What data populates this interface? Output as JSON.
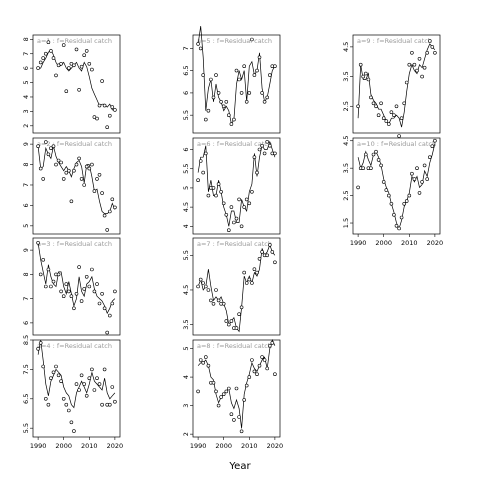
{
  "figure": {
    "xlabel": "Year"
  },
  "chart_data": [
    {
      "type": "scatter",
      "title": "a=1 : f=Residual catch",
      "xlim": [
        1988,
        2022
      ],
      "ylim": [
        1.5,
        8.3
      ],
      "yticks": [
        2,
        3,
        4,
        5,
        6,
        7,
        8
      ],
      "xlabel": "Year",
      "x": [
        1990,
        1991,
        1992,
        1993,
        1994,
        1995,
        1996,
        1997,
        1998,
        1999,
        2000,
        2001,
        2002,
        2003,
        2004,
        2005,
        2006,
        2007,
        2008,
        2009,
        2010,
        2011,
        2012,
        2013,
        2014,
        2015,
        2016,
        2017,
        2018,
        2019,
        2020
      ],
      "points": [
        6.0,
        6.4,
        6.7,
        7.0,
        7.8,
        7.2,
        6.7,
        5.5,
        6.2,
        6.3,
        7.6,
        4.4,
        6.0,
        6.3,
        6.2,
        7.3,
        4.5,
        6.1,
        6.9,
        7.2,
        6.3,
        5.9,
        2.6,
        2.5,
        3.4,
        5.1,
        3.4,
        1.9,
        2.7,
        3.3,
        3.1
      ],
      "line": [
        6.0,
        6.0,
        6.4,
        6.7,
        7.1,
        7.3,
        6.9,
        6.4,
        6.1,
        6.2,
        6.4,
        6.0,
        5.8,
        6.0,
        6.2,
        6.4,
        6.0,
        5.8,
        6.4,
        6.1,
        5.4,
        4.6,
        4.2,
        3.8,
        3.4,
        3.5,
        3.5,
        3.3,
        3.5,
        3.1,
        3.1
      ]
    },
    {
      "type": "scatter",
      "title": "a=2 : f=Residual catch",
      "xlim": [
        1988,
        2022
      ],
      "ylim": [
        4.6,
        9.3
      ],
      "yticks": [
        5,
        6,
        7,
        8,
        9
      ],
      "xlabel": "Year",
      "x": [
        1990,
        1991,
        1992,
        1993,
        1994,
        1995,
        1996,
        1997,
        1998,
        1999,
        2000,
        2001,
        2002,
        2003,
        2004,
        2005,
        2006,
        2007,
        2008,
        2009,
        2010,
        2011,
        2012,
        2013,
        2014,
        2015,
        2016,
        2017,
        2018,
        2019,
        2020
      ],
      "points": [
        8.9,
        7.8,
        7.3,
        9.1,
        8.5,
        8.8,
        8.9,
        8.0,
        8.2,
        8.1,
        7.3,
        7.6,
        7.7,
        6.2,
        7.7,
        8.0,
        8.3,
        7.3,
        7.0,
        7.9,
        7.8,
        8.0,
        6.7,
        7.3,
        7.5,
        6.6,
        5.5,
        4.8,
        5.7,
        6.3,
        5.9
      ],
      "line": [
        8.9,
        7.8,
        7.9,
        8.8,
        8.5,
        8.3,
        8.9,
        8.4,
        8.1,
        7.9,
        7.7,
        7.9,
        7.7,
        7.4,
        7.8,
        8.1,
        8.2,
        7.9,
        7.1,
        8.0,
        8.0,
        7.4,
        6.7,
        6.8,
        6.2,
        5.7,
        5.6,
        5.6,
        5.7,
        6.1,
        5.8
      ]
    },
    {
      "type": "scatter",
      "title": "a=3 : f=Residual catch",
      "xlim": [
        1988,
        2022
      ],
      "ylim": [
        5.5,
        9.5
      ],
      "yticks": [
        6,
        7,
        8,
        9
      ],
      "xlabel": "Year",
      "x": [
        1990,
        1991,
        1992,
        1993,
        1994,
        1995,
        1996,
        1997,
        1998,
        1999,
        2000,
        2001,
        2002,
        2003,
        2004,
        2005,
        2006,
        2007,
        2008,
        2009,
        2010,
        2011,
        2012,
        2013,
        2014,
        2015,
        2016,
        2017,
        2018,
        2019,
        2020
      ],
      "points": [
        9.3,
        8.0,
        8.6,
        7.5,
        8.2,
        7.5,
        7.7,
        8.0,
        8.0,
        7.3,
        7.1,
        7.6,
        7.3,
        7.1,
        6.6,
        7.2,
        8.3,
        6.9,
        7.4,
        7.9,
        7.5,
        8.2,
        7.3,
        7.6,
        6.8,
        7.2,
        6.6,
        5.6,
        6.3,
        6.8,
        7.3
      ],
      "line": [
        9.3,
        8.6,
        8.1,
        7.6,
        8.4,
        7.9,
        7.6,
        7.5,
        8.1,
        8.1,
        7.5,
        7.2,
        7.7,
        7.2,
        6.7,
        7.0,
        7.9,
        7.3,
        7.1,
        7.6,
        7.7,
        7.9,
        7.4,
        7.1,
        7.0,
        6.9,
        6.7,
        6.4,
        6.6,
        6.9,
        7.0
      ]
    },
    {
      "type": "scatter",
      "title": "a=4 : f=Residual catch",
      "xlim": [
        1988,
        2022
      ],
      "ylim": [
        5.2,
        8.5
      ],
      "yticks": [
        5.5,
        6.5,
        7.5,
        8.5
      ],
      "xlabel": "Year",
      "x": [
        1990,
        1991,
        1992,
        1993,
        1994,
        1995,
        1996,
        1997,
        1998,
        1999,
        2000,
        2001,
        2002,
        2003,
        2004,
        2005,
        2006,
        2007,
        2008,
        2009,
        2010,
        2011,
        2012,
        2013,
        2014,
        2015,
        2016,
        2017,
        2018,
        2019,
        2020
      ],
      "points": [
        8.2,
        8.4,
        7.6,
        6.5,
        6.3,
        7.2,
        7.4,
        7.6,
        7.3,
        7.1,
        6.5,
        6.3,
        6.1,
        5.7,
        5.4,
        7.0,
        6.8,
        7.3,
        7.0,
        6.6,
        7.2,
        7.5,
        6.8,
        7.2,
        7.0,
        6.3,
        7.5,
        6.3,
        6.3,
        6.9,
        6.4
      ],
      "line": [
        8.0,
        8.5,
        7.8,
        7.0,
        6.6,
        7.1,
        7.3,
        7.5,
        7.4,
        7.3,
        6.9,
        6.7,
        6.6,
        6.3,
        6.2,
        6.7,
        6.9,
        7.1,
        6.9,
        6.7,
        7.0,
        7.4,
        7.1,
        7.0,
        6.9,
        6.8,
        7.2,
        6.7,
        6.5,
        6.6,
        6.7
      ]
    },
    {
      "type": "scatter",
      "title": "a=5 : f=Residual catch",
      "xlim": [
        1988,
        2022
      ],
      "ylim": [
        5.1,
        7.3
      ],
      "yticks": [
        5.5,
        6.0,
        6.5,
        7.0
      ],
      "xlabel": "Year",
      "x": [
        1990,
        1991,
        1992,
        1993,
        1994,
        1995,
        1996,
        1997,
        1998,
        1999,
        2000,
        2001,
        2002,
        2003,
        2004,
        2005,
        2006,
        2007,
        2008,
        2009,
        2010,
        2011,
        2012,
        2013,
        2014,
        2015,
        2016,
        2017,
        2018,
        2019,
        2020
      ],
      "points": [
        7.1,
        7.0,
        6.4,
        5.4,
        5.6,
        6.3,
        5.9,
        6.4,
        6.0,
        5.8,
        5.7,
        5.8,
        5.5,
        5.3,
        5.4,
        6.5,
        6.3,
        6.0,
        6.6,
        5.8,
        6.0,
        7.2,
        6.4,
        6.5,
        6.8,
        6.0,
        5.8,
        5.9,
        6.4,
        6.6,
        6.6
      ],
      "line": [
        7.1,
        7.5,
        6.8,
        5.6,
        6.1,
        6.3,
        5.8,
        6.2,
        5.9,
        5.8,
        5.6,
        5.7,
        5.6,
        5.3,
        5.4,
        6.2,
        6.5,
        6.3,
        6.5,
        5.8,
        6.6,
        6.7,
        6.4,
        6.5,
        6.9,
        6.1,
        5.8,
        5.9,
        6.2,
        6.5,
        6.6
      ]
    },
    {
      "type": "scatter",
      "title": "a=6 : f=Residual catch",
      "xlim": [
        1988,
        2022
      ],
      "ylim": [
        3.8,
        6.3
      ],
      "yticks": [
        4.0,
        4.5,
        5.0,
        5.5,
        6.0
      ],
      "xlabel": "Year",
      "x": [
        1990,
        1991,
        1992,
        1993,
        1994,
        1995,
        1996,
        1997,
        1998,
        1999,
        2000,
        2001,
        2002,
        2003,
        2004,
        2005,
        2006,
        2007,
        2008,
        2009,
        2010,
        2011,
        2012,
        2013,
        2014,
        2015,
        2016,
        2017,
        2018,
        2019,
        2020
      ],
      "points": [
        5.2,
        5.7,
        5.4,
        5.9,
        4.8,
        5.0,
        5.0,
        4.8,
        5.1,
        4.9,
        4.6,
        4.3,
        3.9,
        4.5,
        4.1,
        4.2,
        4.7,
        4.0,
        4.5,
        4.7,
        4.6,
        4.9,
        5.8,
        5.4,
        6.0,
        6.1,
        5.9,
        6.2,
        6.1,
        5.9,
        5.9
      ],
      "line": [
        5.4,
        5.8,
        5.8,
        6.1,
        4.9,
        5.2,
        4.8,
        4.8,
        5.2,
        4.9,
        4.5,
        4.3,
        4.0,
        4.4,
        4.4,
        4.1,
        4.1,
        4.7,
        4.5,
        4.4,
        4.9,
        5.1,
        5.9,
        5.3,
        5.8,
        6.1,
        6.0,
        6.0,
        6.2,
        6.0,
        5.8
      ]
    },
    {
      "type": "scatter",
      "title": "a=7 : f=Residual catch",
      "xlim": [
        1988,
        2022
      ],
      "ylim": [
        3.2,
        6.0
      ],
      "yticks": [
        3.5,
        4.5,
        5.5
      ],
      "xlabel": "Year",
      "x": [
        1990,
        1991,
        1992,
        1993,
        1994,
        1995,
        1996,
        1997,
        1998,
        1999,
        2000,
        2001,
        2002,
        2003,
        2004,
        2005,
        2006,
        2007,
        2008,
        2009,
        2010,
        2011,
        2012,
        2013,
        2014,
        2015,
        2016,
        2017,
        2018,
        2019,
        2020
      ],
      "points": [
        4.6,
        4.8,
        4.7,
        4.6,
        4.5,
        4.2,
        4.1,
        4.5,
        4.2,
        4.1,
        4.1,
        3.6,
        3.5,
        3.6,
        3.4,
        3.4,
        3.8,
        4.0,
        5.0,
        4.7,
        4.8,
        4.7,
        5.1,
        5.0,
        5.4,
        5.6,
        5.5,
        5.5,
        5.8,
        5.6,
        5.3
      ],
      "line": [
        4.6,
        4.8,
        4.5,
        4.6,
        5.1,
        4.6,
        4.2,
        4.3,
        4.2,
        4.3,
        4.1,
        3.9,
        3.5,
        3.6,
        3.7,
        3.4,
        3.3,
        4.0,
        4.9,
        4.7,
        4.9,
        4.7,
        5.0,
        4.9,
        5.1,
        5.7,
        5.5,
        5.6,
        5.8,
        5.6,
        5.5
      ]
    },
    {
      "type": "scatter",
      "title": "a=8 : f=Residual catch",
      "xlim": [
        1988,
        2022
      ],
      "ylim": [
        1.9,
        5.3
      ],
      "yticks": [
        2.0,
        3.0,
        4.0,
        5.0
      ],
      "xlabel": "Year",
      "x": [
        1990,
        1991,
        1992,
        1993,
        1994,
        1995,
        1996,
        1997,
        1998,
        1999,
        2000,
        2001,
        2002,
        2003,
        2004,
        2005,
        2006,
        2007,
        2008,
        2009,
        2010,
        2011,
        2012,
        2013,
        2014,
        2015,
        2016,
        2017,
        2018,
        2019,
        2020
      ],
      "points": [
        3.5,
        4.6,
        4.5,
        4.7,
        4.4,
        3.8,
        3.8,
        3.5,
        3.0,
        3.3,
        3.4,
        3.5,
        3.6,
        2.7,
        2.5,
        3.6,
        2.6,
        2.1,
        3.2,
        3.7,
        4.0,
        4.6,
        4.2,
        4.1,
        4.4,
        4.7,
        4.6,
        4.3,
        5.1,
        5.2,
        4.1
      ],
      "line": [
        4.4,
        4.5,
        4.5,
        4.6,
        4.4,
        4.0,
        3.9,
        3.4,
        3.1,
        3.3,
        3.4,
        3.5,
        3.6,
        3.1,
        2.9,
        3.2,
        2.9,
        2.2,
        3.4,
        3.8,
        4.1,
        4.5,
        4.3,
        4.2,
        4.4,
        4.6,
        4.7,
        4.3,
        5.0,
        5.3,
        5.1
      ]
    },
    {
      "type": "scatter",
      "title": "a=9 : f=Residual catch",
      "xlim": [
        1988,
        2022
      ],
      "ylim": [
        1.6,
        4.9
      ],
      "yticks": [
        1.5,
        2.5,
        3.5,
        4.5
      ],
      "xlabel": "Year",
      "x": [
        1990,
        1991,
        1992,
        1993,
        1994,
        1995,
        1996,
        1997,
        1998,
        1999,
        2000,
        2001,
        2002,
        2003,
        2004,
        2005,
        2006,
        2007,
        2008,
        2009,
        2010,
        2011,
        2012,
        2013,
        2014,
        2015,
        2016,
        2017,
        2018,
        2019,
        2020
      ],
      "points": [
        2.5,
        3.9,
        3.5,
        3.6,
        3.4,
        2.8,
        2.6,
        2.5,
        2.2,
        2.6,
        2.1,
        2.0,
        1.9,
        2.3,
        2.2,
        2.5,
        1.5,
        2.1,
        2.6,
        3.3,
        3.9,
        4.3,
        3.9,
        3.7,
        4.1,
        3.5,
        3.8,
        4.3,
        4.7,
        4.5,
        4.3
      ],
      "line": [
        2.1,
        3.9,
        3.4,
        3.4,
        3.6,
        2.9,
        2.7,
        2.6,
        2.4,
        2.4,
        2.2,
        2.0,
        1.9,
        2.1,
        2.1,
        2.2,
        2.1,
        1.8,
        2.3,
        3.0,
        3.6,
        3.9,
        3.7,
        3.6,
        3.9,
        3.8,
        4.1,
        4.4,
        4.6,
        4.5,
        4.4
      ]
    },
    {
      "type": "scatter",
      "title": "a=10 : f=Residual catch",
      "xlim": [
        1988,
        2022
      ],
      "ylim": [
        1.1,
        4.6
      ],
      "yticks": [
        1.5,
        2.5,
        3.5,
        4.5
      ],
      "xlabel": "Year",
      "x": [
        1990,
        1991,
        1992,
        1993,
        1994,
        1995,
        1996,
        1997,
        1998,
        1999,
        2000,
        2001,
        2002,
        2003,
        2004,
        2005,
        2006,
        2007,
        2008,
        2009,
        2010,
        2011,
        2012,
        2013,
        2014,
        2015,
        2016,
        2017,
        2018,
        2019,
        2020
      ],
      "points": [
        2.8,
        3.5,
        3.5,
        4.0,
        3.5,
        3.5,
        4.0,
        4.1,
        3.8,
        3.6,
        3.0,
        2.7,
        2.5,
        2.2,
        1.8,
        1.4,
        1.3,
        1.7,
        2.2,
        2.3,
        2.5,
        3.3,
        3.1,
        3.5,
        2.6,
        3.0,
        3.6,
        3.1,
        3.9,
        4.3,
        4.5
      ],
      "line": [
        3.9,
        3.5,
        3.7,
        4.1,
        3.8,
        3.6,
        4.0,
        4.1,
        3.9,
        3.6,
        3.1,
        2.8,
        2.6,
        2.2,
        1.9,
        1.5,
        1.3,
        1.6,
        2.1,
        2.3,
        2.6,
        3.2,
        3.0,
        3.2,
        2.8,
        2.9,
        3.4,
        3.2,
        3.7,
        4.0,
        4.4
      ]
    }
  ]
}
